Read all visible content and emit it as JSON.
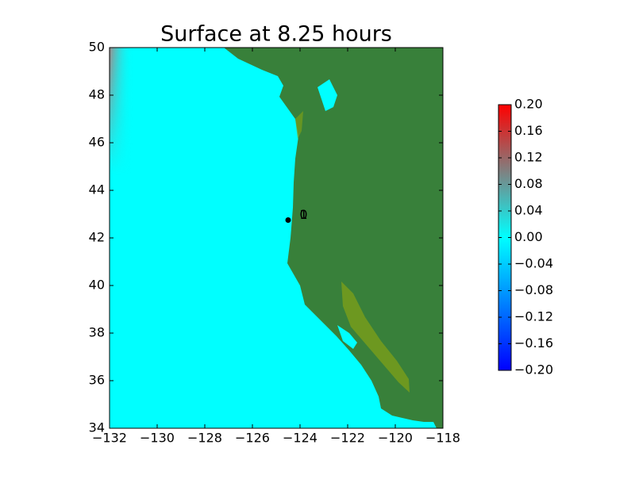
{
  "chart_data": {
    "type": "heatmap",
    "title": "Surface at 8.25 hours",
    "xlim": [
      -132,
      -118
    ],
    "ylim": [
      34,
      50
    ],
    "xticks": [
      {
        "value": -132,
        "label": "−132"
      },
      {
        "value": -130,
        "label": "−130"
      },
      {
        "value": -128,
        "label": "−128"
      },
      {
        "value": -126,
        "label": "−126"
      },
      {
        "value": -124,
        "label": "−124"
      },
      {
        "value": -122,
        "label": "−122"
      },
      {
        "value": -120,
        "label": "−120"
      },
      {
        "value": -118,
        "label": "−118"
      }
    ],
    "yticks": [
      34,
      36,
      38,
      40,
      42,
      44,
      46,
      48,
      50
    ],
    "ocean_color": "#00ffff",
    "land_color": "#38803a",
    "points": [
      {
        "x": -124.5,
        "y": 42.75,
        "color": "#000000"
      }
    ],
    "gauges": [
      {
        "label": "0",
        "x": -123.85,
        "y": 42.95
      },
      {
        "label": "1",
        "x": -123.85,
        "y": 42.95
      }
    ],
    "colorbar": {
      "lim": [
        -0.2,
        0.2
      ],
      "colors": [
        "#0000ff",
        "#0080ff",
        "#00ffff",
        "#808080",
        "#ff0000"
      ],
      "ticks": [
        {
          "value": -0.2,
          "label": "−0.20"
        },
        {
          "value": -0.16,
          "label": "−0.16"
        },
        {
          "value": -0.12,
          "label": "−0.12"
        },
        {
          "value": -0.08,
          "label": "−0.08"
        },
        {
          "value": -0.04,
          "label": "−0.04"
        },
        {
          "value": 0,
          "label": "0.00"
        },
        {
          "value": 0.04,
          "label": "0.04"
        },
        {
          "value": 0.08,
          "label": "0.08"
        },
        {
          "value": 0.12,
          "label": "0.12"
        },
        {
          "value": 0.16,
          "label": "0.16"
        },
        {
          "value": 0.2,
          "label": "0.20"
        }
      ]
    }
  }
}
